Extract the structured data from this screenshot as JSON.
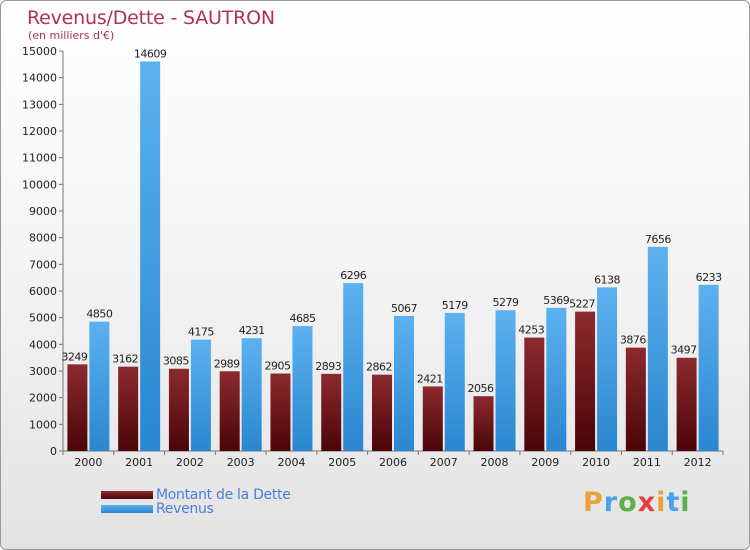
{
  "title": "Revenus/Dette - SAUTRON",
  "subtitle": "(en milliers d'€)",
  "colors": {
    "dette": "#6b0d10",
    "revenus": "#4aa3e6",
    "title": "#b0305a",
    "legend_text": "#4a7fd8"
  },
  "legend": [
    {
      "label": "Montant de la Dette",
      "color": "#6b0d10"
    },
    {
      "label": "Revenus",
      "color": "#4aa3e6"
    }
  ],
  "logo": {
    "letters": [
      "P",
      "r",
      "o",
      "x",
      "i",
      "t",
      "i"
    ],
    "colors": [
      "#e8a23a",
      "#4aa3e6",
      "#5bb04a",
      "#e04040",
      "#e8a23a",
      "#4aa3e6",
      "#5bb04a"
    ]
  },
  "chart_data": {
    "type": "bar",
    "title": "Revenus/Dette - SAUTRON",
    "ylabel": "(en milliers d'€)",
    "xlabel": "",
    "categories": [
      "2000",
      "2001",
      "2002",
      "2003",
      "2004",
      "2005",
      "2006",
      "2007",
      "2008",
      "2009",
      "2010",
      "2011",
      "2012"
    ],
    "series": [
      {
        "name": "Montant de la Dette",
        "values": [
          3249,
          3162,
          3085,
          2989,
          2905,
          2893,
          2862,
          2421,
          2056,
          4253,
          5227,
          3876,
          3497
        ]
      },
      {
        "name": "Revenus",
        "values": [
          4850,
          14609,
          4175,
          4231,
          4685,
          6296,
          5067,
          5179,
          5279,
          5369,
          6138,
          7656,
          6233
        ]
      }
    ],
    "ylim": [
      0,
      15000
    ],
    "yticks": [
      0,
      1000,
      2000,
      3000,
      4000,
      5000,
      6000,
      7000,
      8000,
      9000,
      10000,
      11000,
      12000,
      13000,
      14000,
      15000
    ],
    "grid": false,
    "legend_position": "bottom-left"
  }
}
